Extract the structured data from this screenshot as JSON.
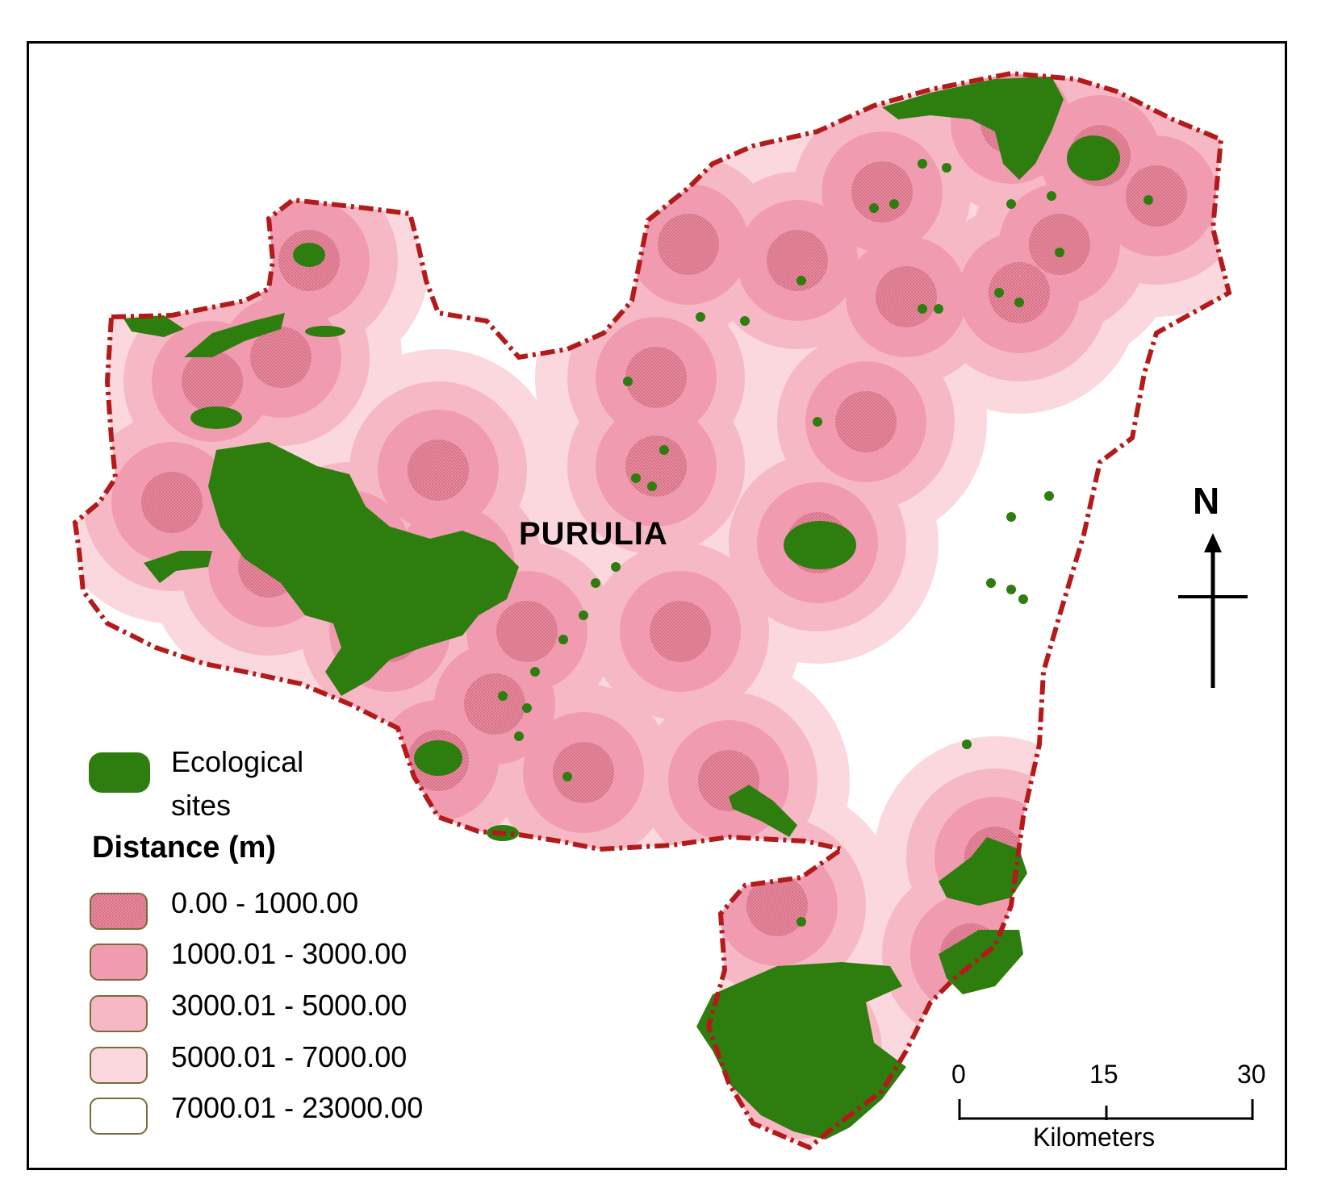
{
  "map": {
    "place_label": "PURULIA",
    "north_label": "N",
    "colors": {
      "boundary": "#b31b1b",
      "ecological_site": "#2e7d0f",
      "zone_0_1000": "#e7899c",
      "zone_1000_3000": "#f19bb0",
      "zone_3000_5000": "#f7b8c6",
      "zone_5000_7000": "#fbd7de",
      "zone_7000_23000": "#ffffff"
    }
  },
  "legend": {
    "ecological_label_line1": "Ecological",
    "ecological_label_line2": "sites",
    "distance_title": "Distance (m)",
    "classes": [
      {
        "label": "0.00 - 1000.00",
        "color": "#e7899c"
      },
      {
        "label": "1000.01 - 3000.00",
        "color": "#f19bb0"
      },
      {
        "label": "3000.01 - 5000.00",
        "color": "#f7b8c6"
      },
      {
        "label": "5000.01 - 7000.00",
        "color": "#fbd7de"
      },
      {
        "label": "7000.01 - 23000.00",
        "color": "#ffffff"
      }
    ]
  },
  "scale_bar": {
    "ticks": [
      "0",
      "15",
      "30"
    ],
    "unit": "Kilometers"
  }
}
